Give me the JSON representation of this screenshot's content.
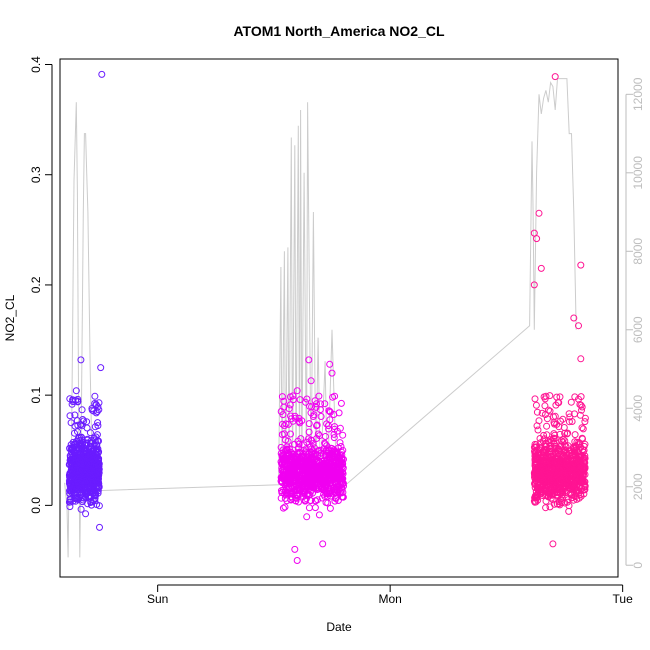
{
  "chart_data": {
    "type": "scatter",
    "title": "ATOM1 North_America NO2_CL",
    "xlabel": "Date",
    "ylabel": "NO2_CL",
    "x_ticks": [
      "Sun",
      "Mon",
      "Tue"
    ],
    "ylim": [
      -0.065,
      0.405
    ],
    "y_ticks": [
      "0.0",
      "0.1",
      "0.2",
      "0.3",
      "0.4"
    ],
    "y_tick_values": [
      0,
      0.1,
      0.2,
      0.3,
      0.4
    ],
    "y2lim": [
      -300,
      12900
    ],
    "y2_ticks": [
      "0",
      "2000",
      "4000",
      "6000",
      "8000",
      "10000",
      "12000"
    ],
    "y2_tick_values": [
      0,
      2000,
      4000,
      6000,
      8000,
      10000,
      12000
    ],
    "xlim_days": [
      -0.42,
      1.98
    ],
    "x_tick_days": [
      0,
      1,
      2
    ],
    "point_color_start": "#6a1cff",
    "point_color_mid": "#f000f0",
    "point_color_end": "#ff1493",
    "line_color": "#cccccc",
    "clusters": [
      {
        "day_start": -0.38,
        "day_end": -0.25,
        "color": "#6a1cff",
        "count": 750,
        "outliers": [
          [
            -0.24,
            0.391
          ],
          [
            -0.33,
            0.132
          ],
          [
            -0.245,
            0.125
          ],
          [
            -0.35,
            0.104
          ],
          [
            -0.27,
            0.099
          ],
          [
            -0.25,
            -0.02
          ]
        ]
      },
      {
        "day_start": 0.53,
        "day_end": 0.8,
        "color": "#f000f0",
        "count": 900,
        "outliers": [
          [
            0.6,
            -0.05
          ],
          [
            0.59,
            -0.04
          ],
          [
            0.71,
            -0.035
          ],
          [
            0.65,
            0.132
          ],
          [
            0.74,
            0.128
          ],
          [
            0.75,
            0.12
          ],
          [
            0.6,
            0.104
          ],
          [
            0.66,
            0.113
          ]
        ]
      },
      {
        "day_start": 1.62,
        "day_end": 1.84,
        "color": "#ff1493",
        "count": 900,
        "outliers": [
          [
            1.71,
            0.389
          ],
          [
            1.64,
            0.265
          ],
          [
            1.62,
            0.247
          ],
          [
            1.63,
            0.242
          ],
          [
            1.82,
            0.218
          ],
          [
            1.65,
            0.215
          ],
          [
            1.62,
            0.2
          ],
          [
            1.81,
            0.163
          ],
          [
            1.79,
            0.17
          ],
          [
            1.82,
            0.133
          ],
          [
            1.7,
            -0.035
          ]
        ]
      }
    ],
    "altitude_series": [
      [
        -0.4,
        2100
      ],
      [
        -0.39,
        1500
      ],
      [
        -0.385,
        200
      ],
      [
        -0.382,
        1800
      ],
      [
        -0.37,
        3200
      ],
      [
        -0.36,
        9800
      ],
      [
        -0.35,
        11800
      ],
      [
        -0.345,
        9500
      ],
      [
        -0.34,
        4000
      ],
      [
        -0.335,
        200
      ],
      [
        -0.33,
        2500
      ],
      [
        -0.32,
        9000
      ],
      [
        -0.315,
        11000
      ],
      [
        -0.31,
        11000
      ],
      [
        -0.305,
        10000
      ],
      [
        -0.3,
        9000
      ],
      [
        -0.29,
        5000
      ],
      [
        -0.28,
        2000
      ],
      [
        -0.27,
        1900
      ],
      [
        0.52,
        2050
      ],
      [
        0.53,
        7600
      ],
      [
        0.535,
        2100
      ],
      [
        0.545,
        8000
      ],
      [
        0.55,
        2100
      ],
      [
        0.56,
        8100
      ],
      [
        0.565,
        2200
      ],
      [
        0.575,
        10900
      ],
      [
        0.58,
        2200
      ],
      [
        0.59,
        10700
      ],
      [
        0.595,
        2300
      ],
      [
        0.605,
        11200
      ],
      [
        0.61,
        2200
      ],
      [
        0.615,
        11600
      ],
      [
        0.62,
        2300
      ],
      [
        0.63,
        10000
      ],
      [
        0.64,
        2200
      ],
      [
        0.645,
        11800
      ],
      [
        0.66,
        2300
      ],
      [
        0.67,
        9000
      ],
      [
        0.68,
        2300
      ],
      [
        0.69,
        5800
      ],
      [
        0.7,
        2100
      ],
      [
        0.72,
        5200
      ],
      [
        0.73,
        2000
      ],
      [
        0.75,
        6000
      ],
      [
        0.77,
        2000
      ],
      [
        0.8,
        2000
      ],
      [
        1.6,
        6100
      ],
      [
        1.61,
        10800
      ],
      [
        1.615,
        9000
      ],
      [
        1.62,
        6000
      ],
      [
        1.63,
        10000
      ],
      [
        1.64,
        12000
      ],
      [
        1.65,
        11500
      ],
      [
        1.66,
        11900
      ],
      [
        1.67,
        12100
      ],
      [
        1.68,
        11800
      ],
      [
        1.69,
        12300
      ],
      [
        1.7,
        12200
      ],
      [
        1.71,
        11600
      ],
      [
        1.72,
        12400
      ],
      [
        1.73,
        12400
      ],
      [
        1.74,
        12400
      ],
      [
        1.75,
        12400
      ],
      [
        1.76,
        12400
      ],
      [
        1.77,
        11000
      ],
      [
        1.78,
        11000
      ],
      [
        1.79,
        9000
      ],
      [
        1.8,
        6000
      ]
    ]
  }
}
